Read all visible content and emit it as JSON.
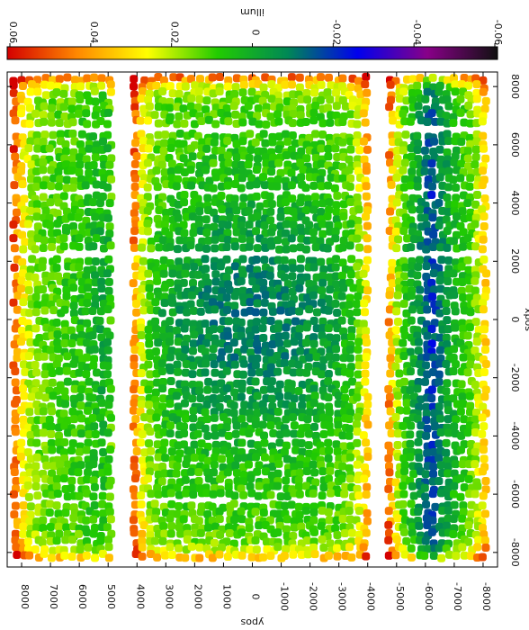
{
  "chart_data": {
    "type": "heatmap",
    "title": "",
    "colorbar": {
      "label": "illum",
      "ticks": [
        "0.06",
        "0.04",
        "0.02",
        "0",
        "-0.02",
        "-0.04",
        "-0.06"
      ],
      "range": [
        0.06,
        -0.06
      ],
      "stops": [
        "#d40000",
        "#ff8800",
        "#ffff00",
        "#22cc00",
        "#008855",
        "#0000ee",
        "#880088",
        "#111111"
      ]
    },
    "xlabel": "xpos",
    "ylabel": "ypos",
    "x_ticks": [
      "8000",
      "6000",
      "4000",
      "2000",
      "0",
      "-2000",
      "-4000",
      "-6000",
      "-8000"
    ],
    "y_ticks": [
      "8000",
      "7000",
      "6000",
      "5000",
      "4000",
      "3000",
      "2000",
      "1000",
      "0",
      "-1000",
      "-2000",
      "-3000",
      "-4000",
      "-5000",
      "-6000",
      "-7000",
      "-8000"
    ],
    "xlim": [
      8500,
      -8500
    ],
    "ylim": [
      8500,
      -8500
    ],
    "ccd_columns_x": [
      [
        8300,
        4700
      ],
      [
        4150,
        -4150
      ],
      [
        -4700,
        -8300
      ]
    ],
    "ccd_rows_y": [
      [
        8350,
        6500
      ],
      [
        6400,
        4400
      ],
      [
        4300,
        2200
      ],
      [
        2100,
        100
      ],
      [
        0,
        -2000
      ],
      [
        -2100,
        -4100
      ],
      [
        -4200,
        -6200
      ],
      [
        -6300,
        -8350
      ]
    ]
  }
}
